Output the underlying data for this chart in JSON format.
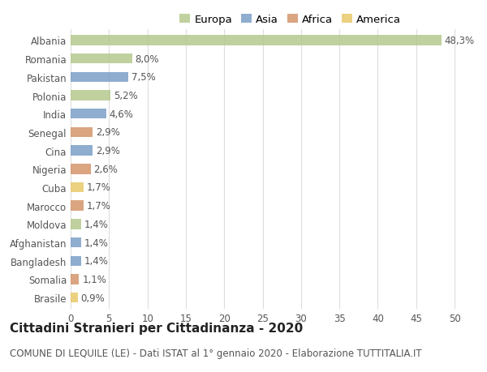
{
  "countries": [
    "Albania",
    "Romania",
    "Pakistan",
    "Polonia",
    "India",
    "Senegal",
    "Cina",
    "Nigeria",
    "Cuba",
    "Marocco",
    "Moldova",
    "Afghanistan",
    "Bangladesh",
    "Somalia",
    "Brasile"
  ],
  "values": [
    48.3,
    8.0,
    7.5,
    5.2,
    4.6,
    2.9,
    2.9,
    2.6,
    1.7,
    1.7,
    1.4,
    1.4,
    1.4,
    1.1,
    0.9
  ],
  "labels": [
    "48,3%",
    "8,0%",
    "7,5%",
    "5,2%",
    "4,6%",
    "2,9%",
    "2,9%",
    "2,6%",
    "1,7%",
    "1,7%",
    "1,4%",
    "1,4%",
    "1,4%",
    "1,1%",
    "0,9%"
  ],
  "continents": [
    "Europa",
    "Europa",
    "Asia",
    "Europa",
    "Asia",
    "Africa",
    "Asia",
    "Africa",
    "America",
    "Africa",
    "Europa",
    "Asia",
    "Asia",
    "Africa",
    "America"
  ],
  "continent_colors": {
    "Europa": "#b5c98e",
    "Asia": "#7b9fc7",
    "Africa": "#d4956a",
    "America": "#e8c96a"
  },
  "legend_order": [
    "Europa",
    "Asia",
    "Africa",
    "America"
  ],
  "title": "Cittadini Stranieri per Cittadinanza - 2020",
  "subtitle": "COMUNE DI LEQUILE (LE) - Dati ISTAT al 1° gennaio 2020 - Elaborazione TUTTITALIA.IT",
  "xlim": [
    0,
    52
  ],
  "xticks": [
    0,
    5,
    10,
    15,
    20,
    25,
    30,
    35,
    40,
    45,
    50
  ],
  "background_color": "#ffffff",
  "grid_color": "#dddddd",
  "bar_height": 0.55,
  "label_fontsize": 8.5,
  "title_fontsize": 11,
  "subtitle_fontsize": 8.5,
  "tick_fontsize": 8.5,
  "legend_fontsize": 9.5
}
